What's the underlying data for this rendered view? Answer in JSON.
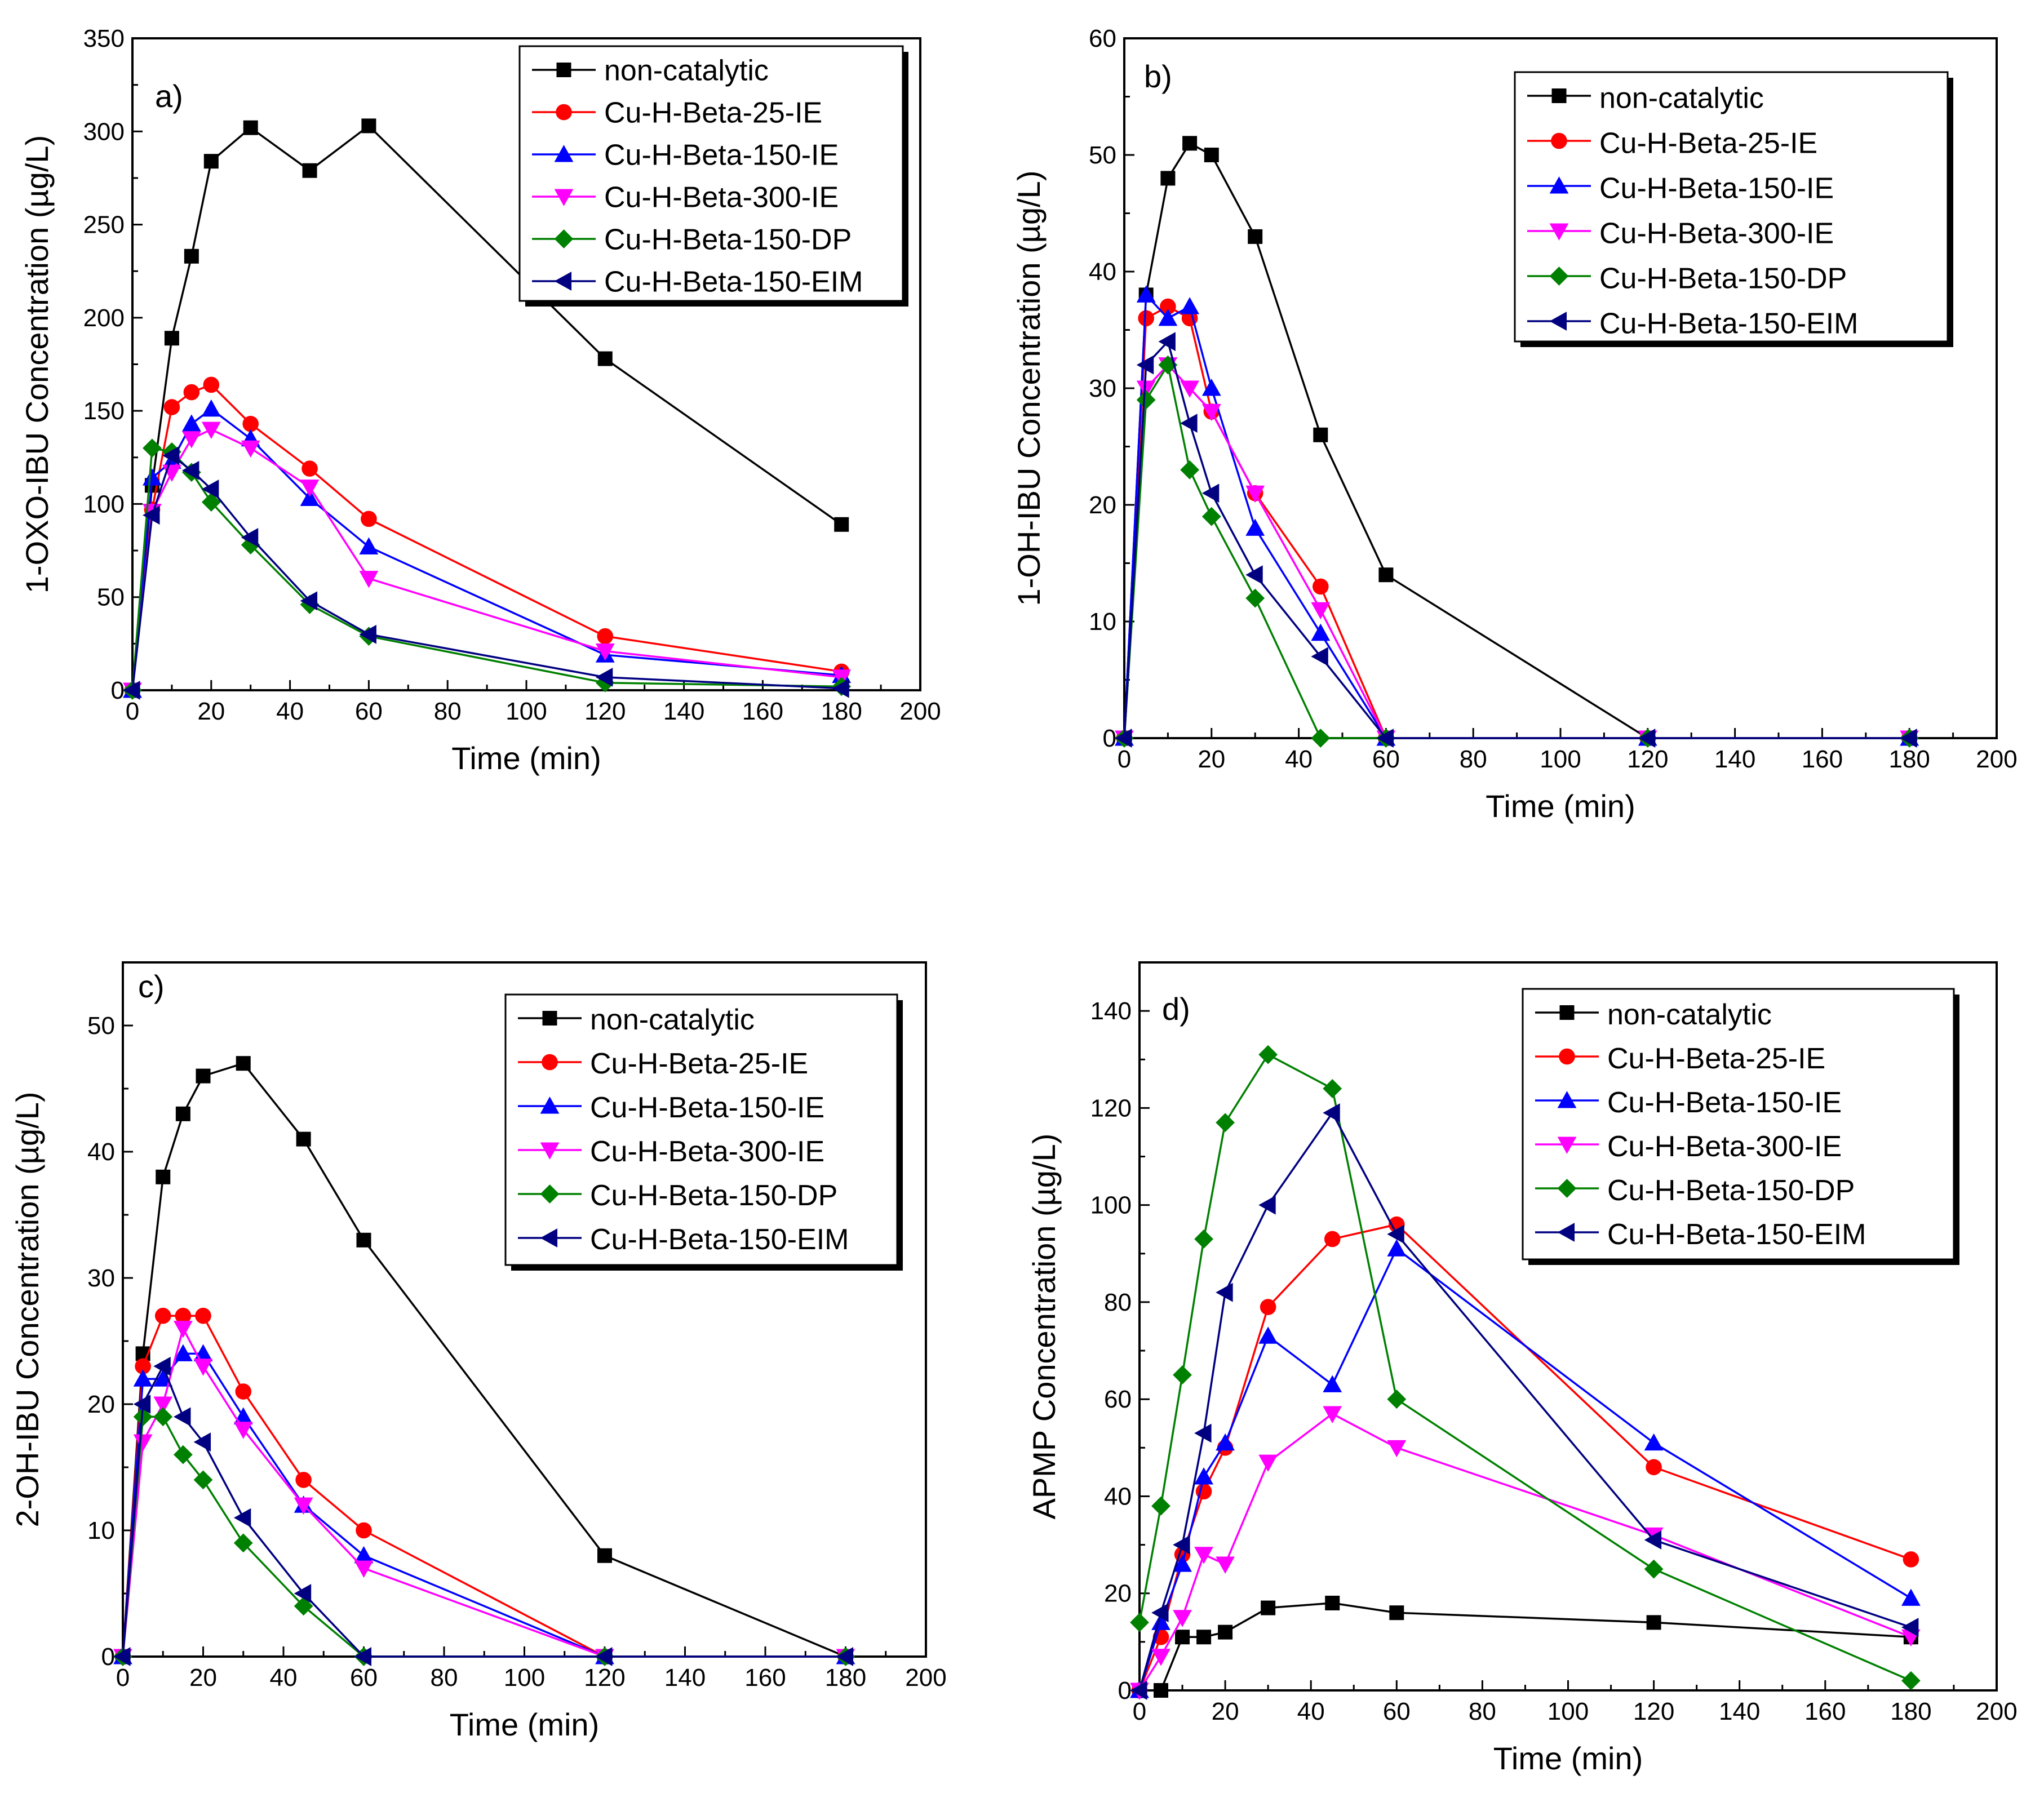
{
  "chart_data": [
    {
      "panel": "a)",
      "type": "line",
      "xlabel": "Time (min)",
      "ylabel": "1-OXO-IBU Concentration (µg/L)",
      "xlim": [
        0,
        200
      ],
      "ylim": [
        0,
        350
      ],
      "xticks": [
        0,
        20,
        40,
        60,
        80,
        100,
        120,
        140,
        160,
        180,
        200
      ],
      "yticks": [
        0,
        50,
        100,
        150,
        200,
        250,
        300,
        350
      ],
      "legend_position": "top-right",
      "series": [
        {
          "name": "non-catalytic",
          "color": "#000000",
          "marker": "square",
          "x": [
            0,
            5,
            10,
            15,
            20,
            30,
            45,
            60,
            120,
            180
          ],
          "y": [
            0,
            110,
            189,
            233,
            284,
            302,
            279,
            303,
            178,
            89
          ]
        },
        {
          "name": "Cu-H-Beta-25-IE",
          "color": "#ff0000",
          "marker": "circle",
          "x": [
            0,
            5,
            10,
            15,
            20,
            30,
            45,
            60,
            120,
            180
          ],
          "y": [
            0,
            97,
            152,
            160,
            164,
            143,
            119,
            92,
            29,
            10
          ]
        },
        {
          "name": "Cu-H-Beta-150-IE",
          "color": "#0000ff",
          "marker": "triangle-up",
          "x": [
            0,
            5,
            10,
            15,
            20,
            30,
            45,
            60,
            120,
            180
          ],
          "y": [
            0,
            114,
            123,
            143,
            151,
            135,
            103,
            77,
            19,
            8
          ]
        },
        {
          "name": "Cu-H-Beta-300-IE",
          "color": "#ff00ff",
          "marker": "triangle-down",
          "x": [
            0,
            5,
            10,
            15,
            20,
            30,
            45,
            60,
            120,
            180
          ],
          "y": [
            0,
            96,
            117,
            135,
            140,
            130,
            109,
            60,
            21,
            7
          ]
        },
        {
          "name": "Cu-H-Beta-150-DP",
          "color": "#008000",
          "marker": "diamond",
          "x": [
            0,
            5,
            10,
            15,
            20,
            30,
            45,
            60,
            120,
            180
          ],
          "y": [
            0,
            130,
            128,
            117,
            101,
            78,
            46,
            29,
            4,
            2
          ]
        },
        {
          "name": "Cu-H-Beta-150-EIM",
          "color": "#000080",
          "marker": "triangle-left",
          "x": [
            0,
            5,
            10,
            15,
            20,
            30,
            45,
            60,
            120,
            180
          ],
          "y": [
            0,
            94,
            126,
            118,
            108,
            82,
            48,
            30,
            7,
            1
          ]
        }
      ]
    },
    {
      "panel": "b)",
      "type": "line",
      "xlabel": "Time (min)",
      "ylabel": "1-OH-IBU Concentration (µg/L)",
      "xlim": [
        0,
        200
      ],
      "ylim": [
        0,
        60
      ],
      "xticks": [
        0,
        20,
        40,
        60,
        80,
        100,
        120,
        140,
        160,
        180,
        200
      ],
      "yticks": [
        0,
        10,
        20,
        30,
        40,
        50,
        60
      ],
      "legend_position": "top-right",
      "series": [
        {
          "name": "non-catalytic",
          "color": "#000000",
          "marker": "square",
          "x": [
            0,
            5,
            10,
            15,
            20,
            30,
            45,
            60,
            120,
            180
          ],
          "y": [
            0,
            38,
            48,
            51,
            50,
            43,
            26,
            14,
            0,
            0
          ]
        },
        {
          "name": "Cu-H-Beta-25-IE",
          "color": "#ff0000",
          "marker": "circle",
          "x": [
            0,
            5,
            10,
            15,
            20,
            30,
            45,
            60,
            120,
            180
          ],
          "y": [
            0,
            36,
            37,
            36,
            28,
            21,
            13,
            0,
            0,
            0
          ]
        },
        {
          "name": "Cu-H-Beta-150-IE",
          "color": "#0000ff",
          "marker": "triangle-up",
          "x": [
            0,
            5,
            10,
            15,
            20,
            30,
            45,
            60,
            120,
            180
          ],
          "y": [
            0,
            38,
            36,
            37,
            30,
            18,
            9,
            0,
            0,
            0
          ]
        },
        {
          "name": "Cu-H-Beta-300-IE",
          "color": "#ff00ff",
          "marker": "triangle-down",
          "x": [
            0,
            5,
            10,
            15,
            20,
            30,
            45,
            60,
            120,
            180
          ],
          "y": [
            0,
            30,
            32,
            30,
            28,
            21,
            11,
            0,
            0,
            0
          ]
        },
        {
          "name": "Cu-H-Beta-150-DP",
          "color": "#008000",
          "marker": "diamond",
          "x": [
            0,
            5,
            10,
            15,
            20,
            30,
            45,
            60,
            120,
            180
          ],
          "y": [
            0,
            29,
            32,
            23,
            19,
            12,
            0,
            0,
            0,
            0
          ]
        },
        {
          "name": "Cu-H-Beta-150-EIM",
          "color": "#000080",
          "marker": "triangle-left",
          "x": [
            0,
            5,
            10,
            15,
            20,
            30,
            45,
            60,
            120,
            180
          ],
          "y": [
            0,
            32,
            34,
            27,
            21,
            14,
            7,
            0,
            0,
            0
          ]
        }
      ]
    },
    {
      "panel": "c)",
      "type": "line",
      "xlabel": "Time (min)",
      "ylabel": "2-OH-IBU Concentration (µg/L)",
      "xlim": [
        0,
        200
      ],
      "ylim": [
        0,
        55
      ],
      "xticks": [
        0,
        20,
        40,
        60,
        80,
        100,
        120,
        140,
        160,
        180,
        200
      ],
      "yticks": [
        0,
        10,
        20,
        30,
        40,
        50
      ],
      "legend_position": "top-right",
      "series": [
        {
          "name": "non-catalytic",
          "color": "#000000",
          "marker": "square",
          "x": [
            0,
            5,
            10,
            15,
            20,
            30,
            45,
            60,
            120,
            180
          ],
          "y": [
            0,
            24,
            38,
            43,
            46,
            47,
            41,
            33,
            8,
            0
          ]
        },
        {
          "name": "Cu-H-Beta-25-IE",
          "color": "#ff0000",
          "marker": "circle",
          "x": [
            0,
            5,
            10,
            15,
            20,
            30,
            45,
            60,
            120,
            180
          ],
          "y": [
            0,
            23,
            27,
            27,
            27,
            21,
            14,
            10,
            0,
            0
          ]
        },
        {
          "name": "Cu-H-Beta-150-IE",
          "color": "#0000ff",
          "marker": "triangle-up",
          "x": [
            0,
            5,
            10,
            15,
            20,
            30,
            45,
            60,
            120,
            180
          ],
          "y": [
            0,
            22,
            22,
            24,
            24,
            19,
            12,
            8,
            0,
            0
          ]
        },
        {
          "name": "Cu-H-Beta-300-IE",
          "color": "#ff00ff",
          "marker": "triangle-down",
          "x": [
            0,
            5,
            10,
            15,
            20,
            30,
            45,
            60,
            120,
            180
          ],
          "y": [
            0,
            17,
            20,
            26,
            23,
            18,
            12,
            7,
            0,
            0
          ]
        },
        {
          "name": "Cu-H-Beta-150-DP",
          "color": "#008000",
          "marker": "diamond",
          "x": [
            0,
            5,
            10,
            15,
            20,
            30,
            45,
            60,
            120,
            180
          ],
          "y": [
            0,
            19,
            19,
            16,
            14,
            9,
            4,
            0,
            0,
            0
          ]
        },
        {
          "name": "Cu-H-Beta-150-EIM",
          "color": "#000080",
          "marker": "triangle-left",
          "x": [
            0,
            5,
            10,
            15,
            20,
            30,
            45,
            60,
            120,
            180
          ],
          "y": [
            0,
            20,
            23,
            19,
            17,
            11,
            5,
            0,
            0,
            0
          ]
        }
      ]
    },
    {
      "panel": "d)",
      "type": "line",
      "xlabel": "Time (min)",
      "ylabel": "APMP Concentration (µg/L)",
      "xlim": [
        0,
        200
      ],
      "ylim": [
        0,
        150
      ],
      "xticks": [
        0,
        20,
        40,
        60,
        80,
        100,
        120,
        140,
        160,
        180,
        200
      ],
      "yticks": [
        0,
        20,
        40,
        60,
        80,
        100,
        120,
        140
      ],
      "legend_position": "top-right",
      "series": [
        {
          "name": "non-catalytic",
          "color": "#000000",
          "marker": "square",
          "x": [
            5,
            10,
            15,
            20,
            30,
            45,
            60,
            120,
            180
          ],
          "y": [
            0,
            11,
            11,
            12,
            17,
            18,
            16,
            14,
            11
          ]
        },
        {
          "name": "Cu-H-Beta-25-IE",
          "color": "#ff0000",
          "marker": "circle",
          "x": [
            0,
            5,
            10,
            15,
            20,
            30,
            45,
            60,
            120,
            180
          ],
          "y": [
            0,
            11,
            28,
            41,
            50,
            79,
            93,
            96,
            46,
            27
          ]
        },
        {
          "name": "Cu-H-Beta-150-IE",
          "color": "#0000ff",
          "marker": "triangle-up",
          "x": [
            0,
            5,
            10,
            15,
            20,
            30,
            45,
            60,
            120,
            180
          ],
          "y": [
            0,
            14,
            26,
            44,
            51,
            73,
            63,
            91,
            51,
            19
          ]
        },
        {
          "name": "Cu-H-Beta-300-IE",
          "color": "#ff00ff",
          "marker": "triangle-down",
          "x": [
            0,
            5,
            10,
            15,
            20,
            30,
            45,
            60,
            120,
            180
          ],
          "y": [
            0,
            7,
            15,
            28,
            26,
            47,
            57,
            50,
            32,
            11
          ]
        },
        {
          "name": "Cu-H-Beta-150-DP",
          "color": "#008000",
          "marker": "diamond",
          "x": [
            0,
            5,
            10,
            15,
            20,
            30,
            45,
            60,
            120,
            180
          ],
          "y": [
            14,
            38,
            65,
            93,
            117,
            131,
            124,
            60,
            25,
            2
          ]
        },
        {
          "name": "Cu-H-Beta-150-EIM",
          "color": "#000080",
          "marker": "triangle-left",
          "x": [
            0,
            5,
            10,
            15,
            20,
            30,
            45,
            60,
            120,
            180
          ],
          "y": [
            0,
            16,
            30,
            53,
            82,
            100,
            119,
            94,
            31,
            13
          ]
        }
      ]
    }
  ]
}
